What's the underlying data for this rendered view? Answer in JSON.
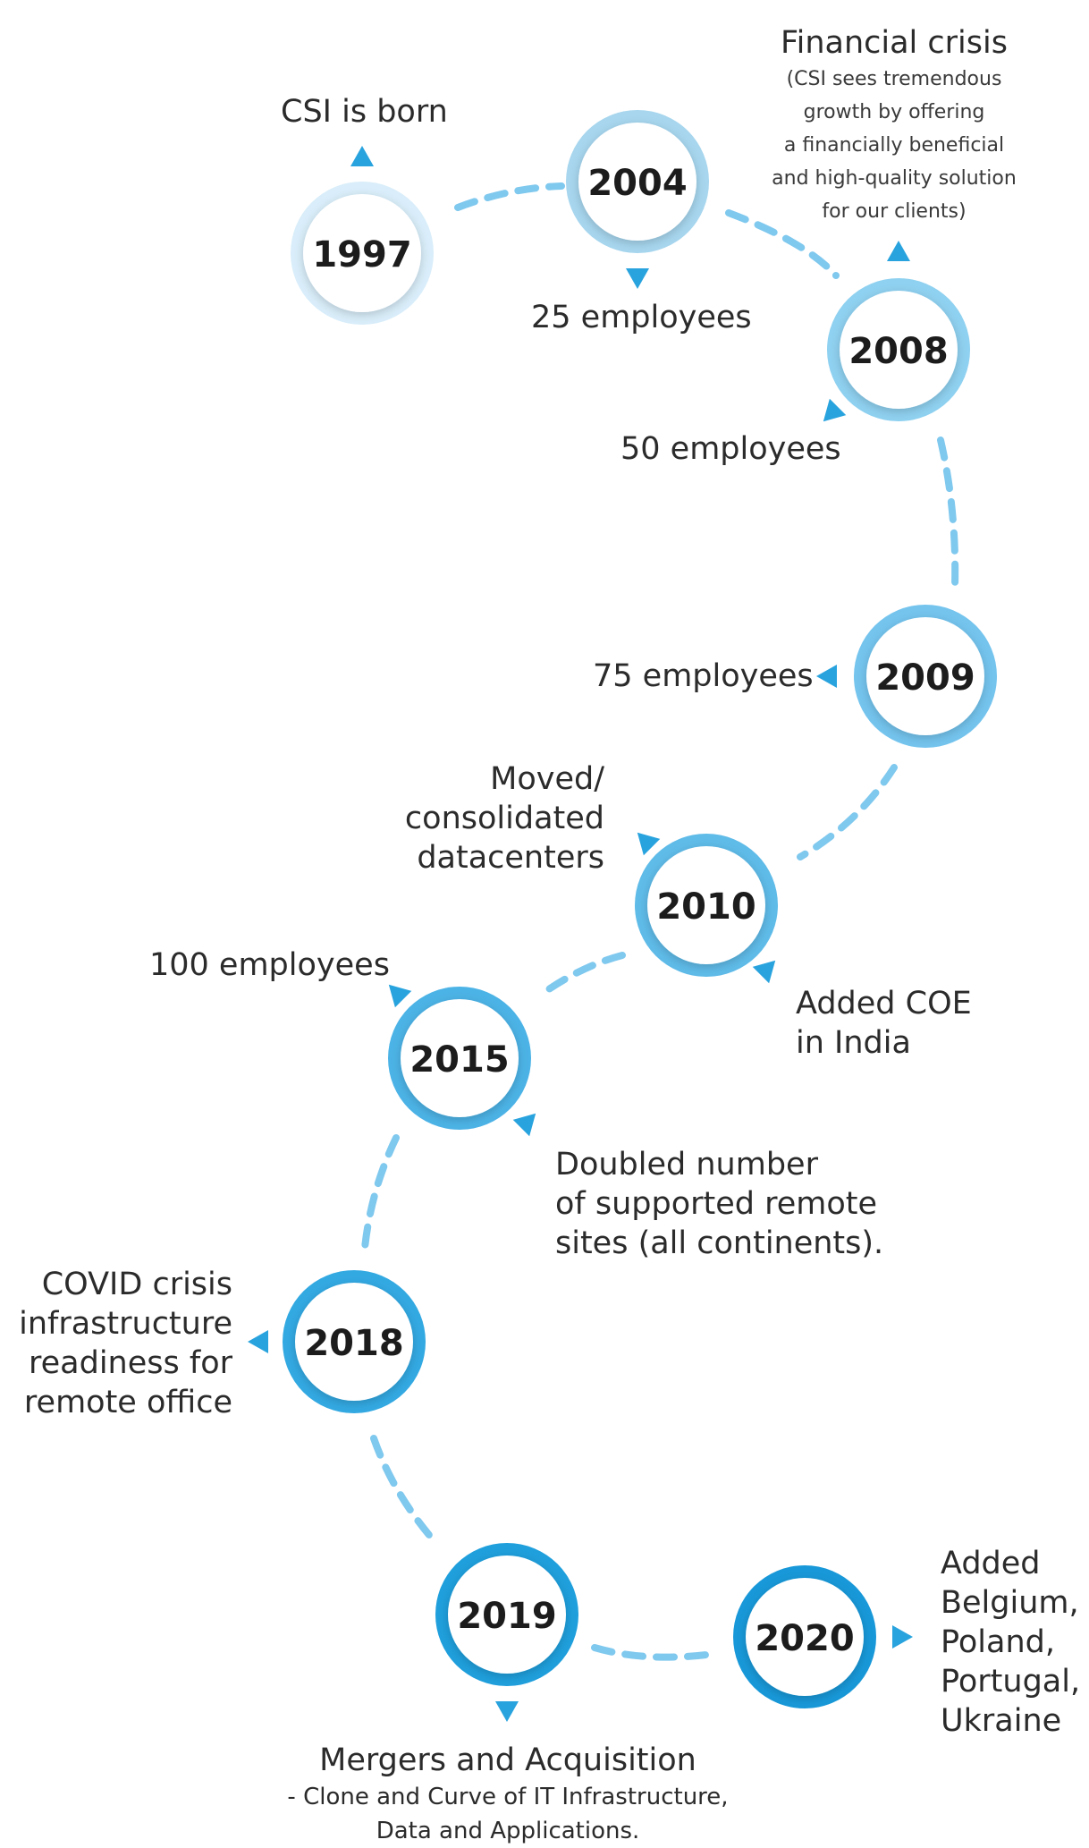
{
  "milestones": [
    {
      "year": "1997",
      "color": "#d9eefa"
    },
    {
      "year": "2004",
      "color": "#a7d6ee"
    },
    {
      "year": "2008",
      "color": "#8fd1f0"
    },
    {
      "year": "2009",
      "color": "#74c4ee"
    },
    {
      "year": "2010",
      "color": "#5fbbe8"
    },
    {
      "year": "2015",
      "color": "#4cb3e6"
    },
    {
      "year": "2018",
      "color": "#33a9e2"
    },
    {
      "year": "2019",
      "color": "#1f9fdc"
    },
    {
      "year": "2020",
      "color": "#1898d8"
    }
  ],
  "labels": {
    "csi_born": "CSI is born",
    "emp_25": "25 employees",
    "financial_title": "Financial crisis",
    "financial_lines": [
      "(CSI sees tremendous",
      "growth by offering",
      "a financially beneficial",
      "and high-quality solution",
      "for our clients)"
    ],
    "emp_50": "50 employees",
    "emp_75": "75 employees",
    "moved_lines": [
      "Moved/",
      "consolidated",
      "datacenters"
    ],
    "coe_lines": [
      "Added COE",
      "in India"
    ],
    "emp_100": "100 employees",
    "doubled_lines": [
      "Doubled number",
      "of supported remote",
      "sites (all continents)."
    ],
    "covid_lines": [
      "COVID crisis",
      "infrastructure",
      "readiness for",
      "remote office"
    ],
    "mergers_title": "Mergers and Acquisition",
    "mergers_lines": [
      "- Clone and Curve of IT Infrastructure,",
      "Data and Applications."
    ],
    "added_lines": [
      "Added",
      "Belgium,",
      "Poland,",
      "Portugal,",
      "Ukraine"
    ]
  },
  "colors": {
    "arrow": "#29a3de",
    "path": "#7fc8ee",
    "year_text": "#1c1c1c"
  }
}
